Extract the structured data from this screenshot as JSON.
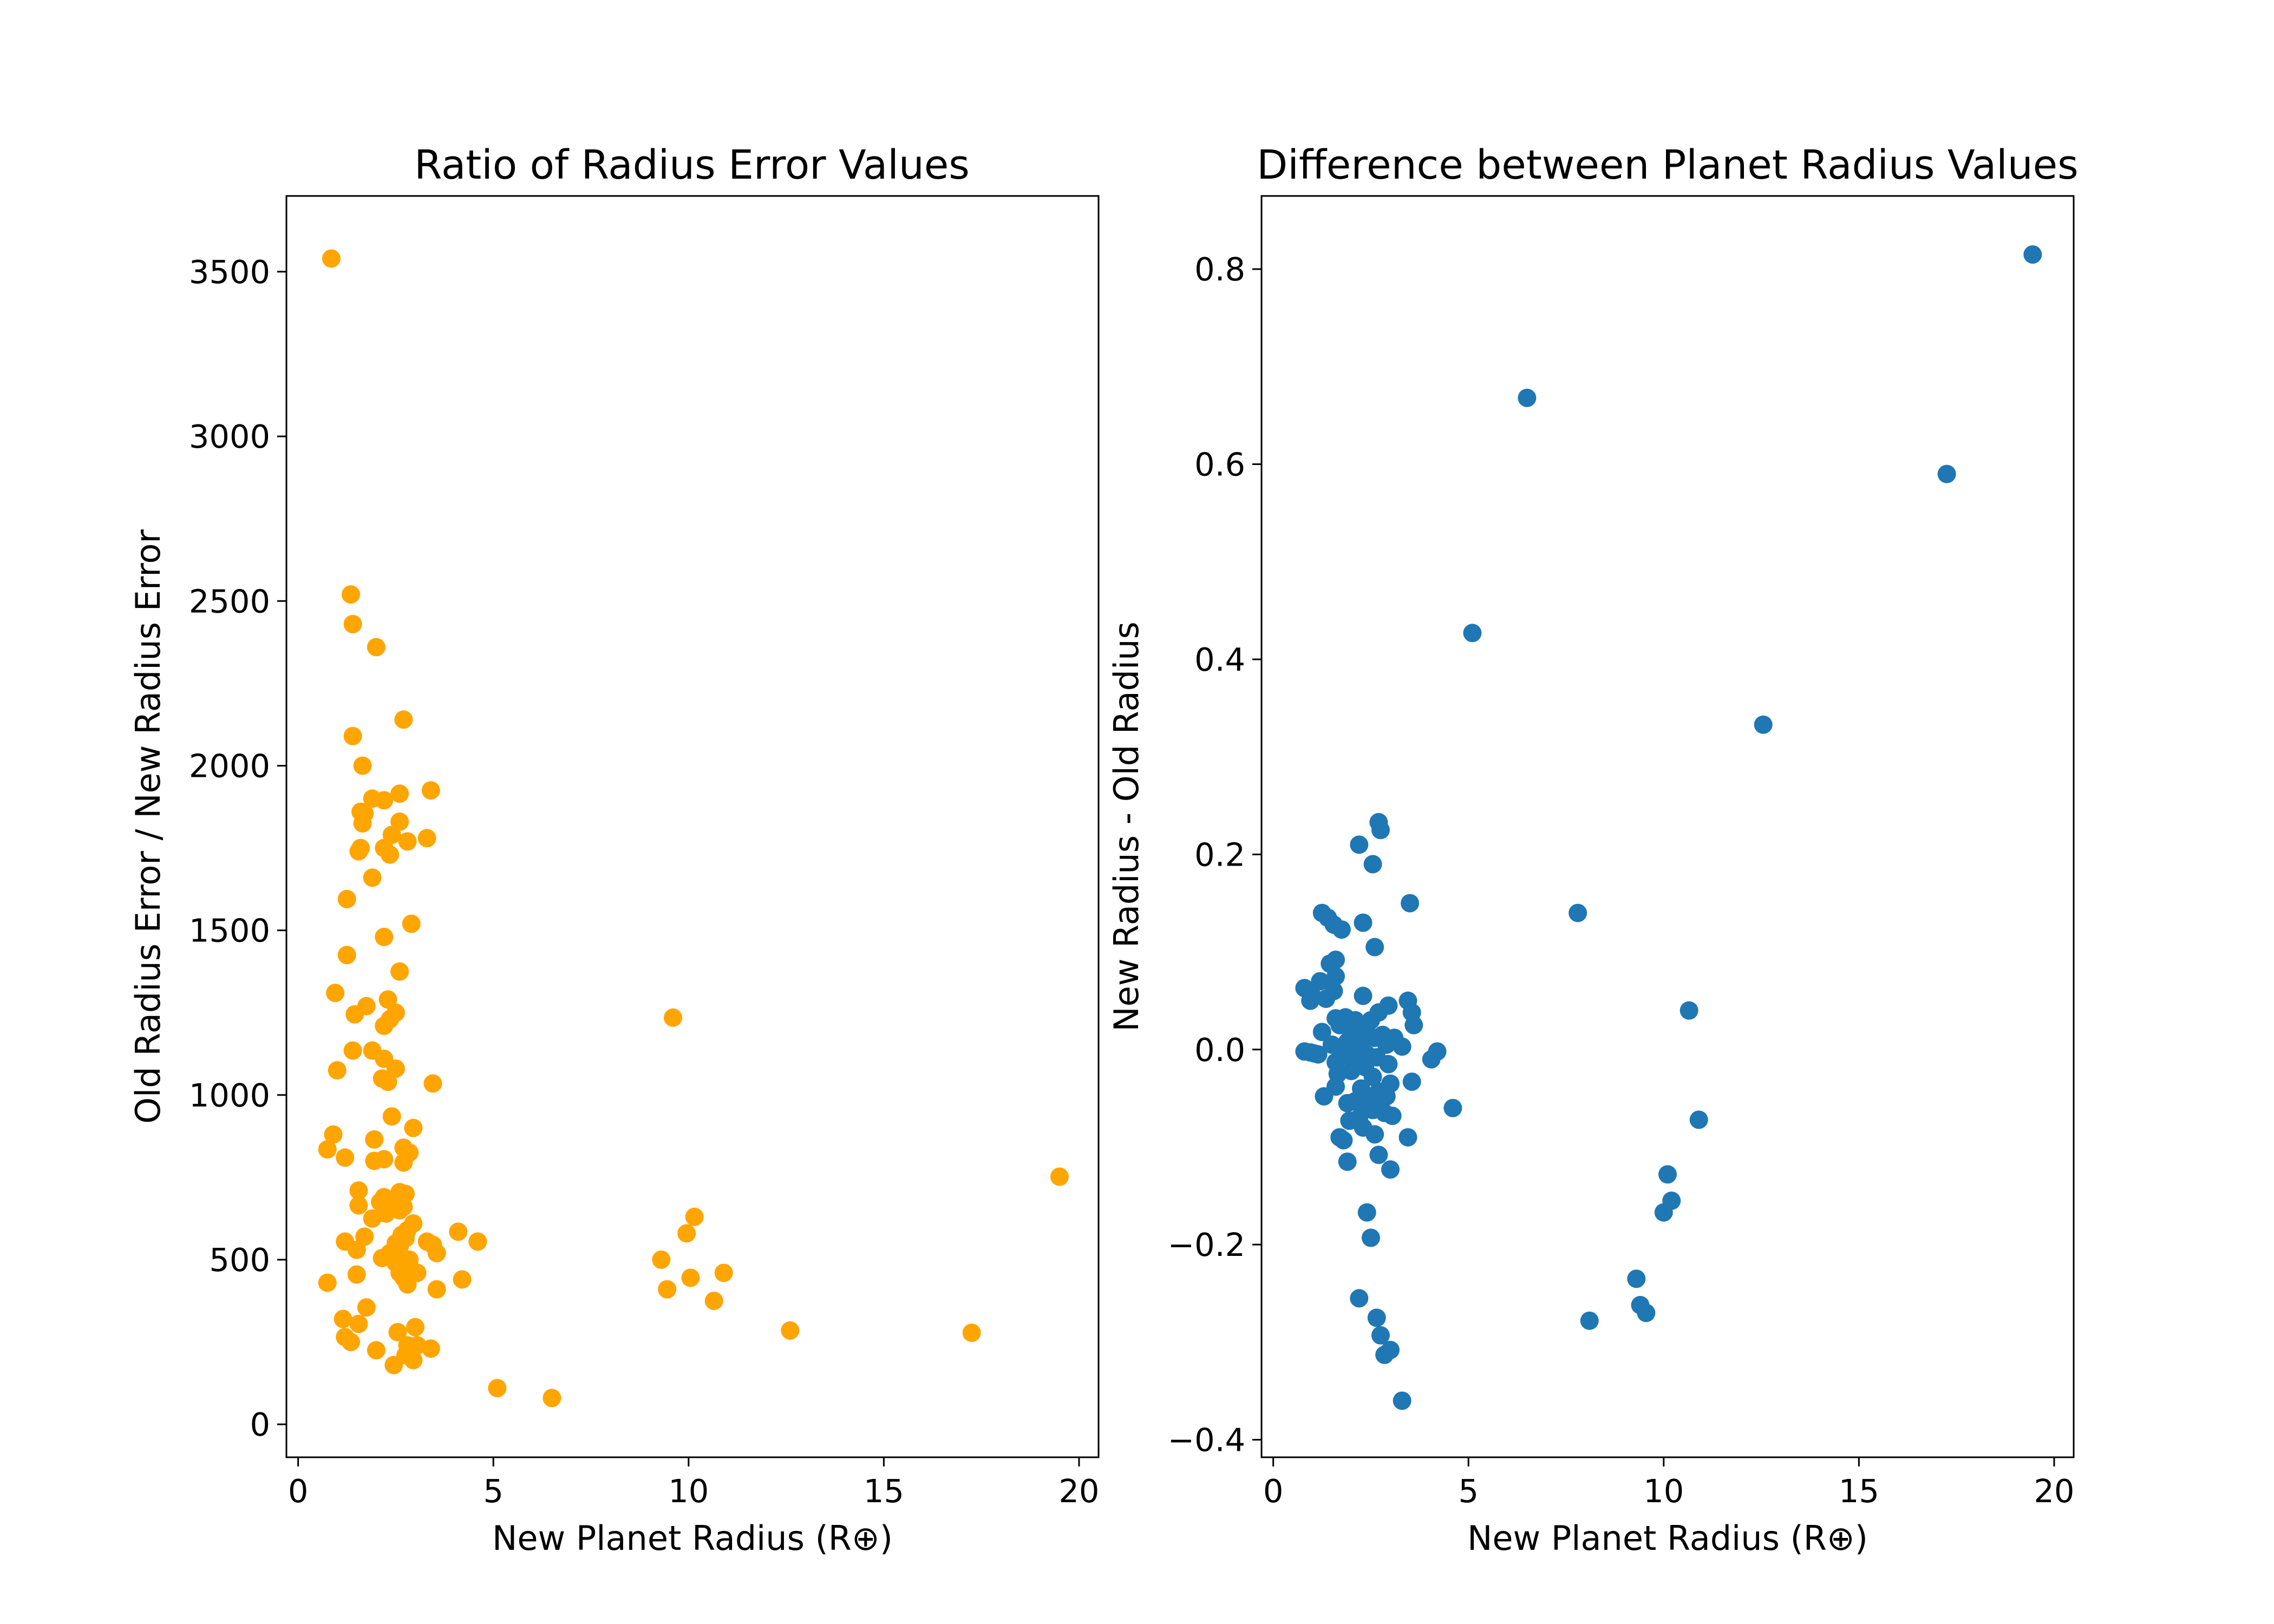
{
  "chart_data": [
    {
      "type": "scatter",
      "title": "Ratio of Radius Error Values",
      "xlabel": "New Planet Radius (R⊕)",
      "ylabel": "Old Radius Error / New Radius Error",
      "xlim": [
        -0.3,
        20.5
      ],
      "ylim": [
        -100,
        3730
      ],
      "xticks": [
        0,
        5,
        10,
        15,
        20
      ],
      "yticks": [
        0,
        500,
        1000,
        1500,
        2000,
        2500,
        3000,
        3500
      ],
      "grid": false,
      "color": "#ffa500",
      "series": [
        {
          "points": [
            [
              0.85,
              3540
            ],
            [
              1.35,
              2520
            ],
            [
              1.4,
              2430
            ],
            [
              2.0,
              2360
            ],
            [
              1.4,
              2090
            ],
            [
              2.7,
              2140
            ],
            [
              1.65,
              2000
            ],
            [
              3.4,
              1925
            ],
            [
              2.6,
              1915
            ],
            [
              2.2,
              1895
            ],
            [
              1.9,
              1900
            ],
            [
              1.6,
              1860
            ],
            [
              1.7,
              1855
            ],
            [
              2.6,
              1830
            ],
            [
              1.65,
              1825
            ],
            [
              2.4,
              1790
            ],
            [
              3.3,
              1780
            ],
            [
              2.8,
              1770
            ],
            [
              2.2,
              1750
            ],
            [
              1.55,
              1740
            ],
            [
              2.35,
              1730
            ],
            [
              1.6,
              1750
            ],
            [
              1.9,
              1660
            ],
            [
              1.25,
              1595
            ],
            [
              2.9,
              1520
            ],
            [
              2.2,
              1480
            ],
            [
              1.25,
              1425
            ],
            [
              2.6,
              1375
            ],
            [
              0.95,
              1310
            ],
            [
              2.3,
              1290
            ],
            [
              1.75,
              1270
            ],
            [
              2.5,
              1250
            ],
            [
              1.45,
              1245
            ],
            [
              2.35,
              1230
            ],
            [
              2.2,
              1210
            ],
            [
              1.4,
              1135
            ],
            [
              1.9,
              1135
            ],
            [
              2.2,
              1110
            ],
            [
              2.5,
              1080
            ],
            [
              1.0,
              1075
            ],
            [
              2.15,
              1050
            ],
            [
              2.3,
              1040
            ],
            [
              3.45,
              1035
            ],
            [
              2.4,
              935
            ],
            [
              2.95,
              900
            ],
            [
              0.9,
              880
            ],
            [
              1.95,
              865
            ],
            [
              2.7,
              840
            ],
            [
              0.75,
              835
            ],
            [
              2.85,
              825
            ],
            [
              1.2,
              810
            ],
            [
              2.2,
              805
            ],
            [
              1.95,
              800
            ],
            [
              2.7,
              795
            ],
            [
              1.55,
              710
            ],
            [
              2.6,
              705
            ],
            [
              2.75,
              700
            ],
            [
              2.2,
              690
            ],
            [
              2.1,
              675
            ],
            [
              2.4,
              675
            ],
            [
              1.55,
              665
            ],
            [
              2.7,
              660
            ],
            [
              2.6,
              650
            ],
            [
              2.25,
              640
            ],
            [
              1.9,
              625
            ],
            [
              2.95,
              610
            ],
            [
              2.8,
              590
            ],
            [
              4.1,
              585
            ],
            [
              2.65,
              575
            ],
            [
              1.7,
              570
            ],
            [
              2.75,
              565
            ],
            [
              3.3,
              555
            ],
            [
              1.2,
              555
            ],
            [
              2.5,
              550
            ],
            [
              3.45,
              545
            ],
            [
              2.6,
              540
            ],
            [
              4.6,
              555
            ],
            [
              1.5,
              530
            ],
            [
              3.55,
              520
            ],
            [
              2.35,
              520
            ],
            [
              2.15,
              505
            ],
            [
              2.85,
              500
            ],
            [
              2.5,
              490
            ],
            [
              2.75,
              485
            ],
            [
              2.9,
              470
            ],
            [
              2.6,
              460
            ],
            [
              3.05,
              460
            ],
            [
              1.5,
              455
            ],
            [
              2.7,
              445
            ],
            [
              4.2,
              440
            ],
            [
              0.75,
              430
            ],
            [
              2.8,
              425
            ],
            [
              3.55,
              410
            ],
            [
              1.75,
              355
            ],
            [
              1.15,
              320
            ],
            [
              1.55,
              305
            ],
            [
              3.0,
              295
            ],
            [
              2.55,
              280
            ],
            [
              1.2,
              265
            ],
            [
              1.35,
              250
            ],
            [
              2.8,
              240
            ],
            [
              3.05,
              240
            ],
            [
              2.0,
              225
            ],
            [
              3.4,
              230
            ],
            [
              2.75,
              210
            ],
            [
              2.95,
              195
            ],
            [
              2.45,
              180
            ],
            [
              9.6,
              1235
            ],
            [
              10.15,
              630
            ],
            [
              9.95,
              580
            ],
            [
              9.3,
              500
            ],
            [
              10.9,
              460
            ],
            [
              10.05,
              445
            ],
            [
              9.45,
              410
            ],
            [
              10.65,
              375
            ],
            [
              12.6,
              285
            ],
            [
              17.25,
              278
            ],
            [
              19.5,
              752
            ],
            [
              5.1,
              110
            ],
            [
              6.5,
              80
            ]
          ]
        }
      ]
    },
    {
      "type": "scatter",
      "title": "Difference between Planet Radius Values",
      "xlabel": "New Planet Radius (R⊕)",
      "ylabel": "New Radius - Old Radius",
      "xlim": [
        -0.3,
        20.5
      ],
      "ylim": [
        -0.418,
        0.875
      ],
      "xticks": [
        0,
        5,
        10,
        15,
        20
      ],
      "yticks": [
        -0.4,
        -0.2,
        0.0,
        0.2,
        0.4,
        0.6,
        0.8
      ],
      "ytick_labels": [
        "−0.4",
        "−0.2",
        "0.0",
        "0.2",
        "0.4",
        "0.6",
        "0.8"
      ],
      "grid": false,
      "color": "#1f77b4",
      "series": [
        {
          "points": [
            [
              19.45,
              0.815
            ],
            [
              6.5,
              0.668
            ],
            [
              17.25,
              0.59
            ],
            [
              5.1,
              0.427
            ],
            [
              12.55,
              0.333
            ],
            [
              7.8,
              0.14
            ],
            [
              10.65,
              0.04
            ],
            [
              4.6,
              -0.06
            ],
            [
              10.9,
              -0.072
            ],
            [
              10.1,
              -0.128
            ],
            [
              10.2,
              -0.155
            ],
            [
              10.0,
              -0.167
            ],
            [
              9.3,
              -0.235
            ],
            [
              9.4,
              -0.262
            ],
            [
              9.55,
              -0.27
            ],
            [
              8.1,
              -0.278
            ],
            [
              2.7,
              0.233
            ],
            [
              2.75,
              0.225
            ],
            [
              2.2,
              0.21
            ],
            [
              2.55,
              0.19
            ],
            [
              3.5,
              0.15
            ],
            [
              1.25,
              0.14
            ],
            [
              1.4,
              0.135
            ],
            [
              1.55,
              0.128
            ],
            [
              2.3,
              0.13
            ],
            [
              1.75,
              0.123
            ],
            [
              2.6,
              0.105
            ],
            [
              1.6,
              0.092
            ],
            [
              1.45,
              0.088
            ],
            [
              1.6,
              0.075
            ],
            [
              1.2,
              0.07
            ],
            [
              0.8,
              0.063
            ],
            [
              1.55,
              0.06
            ],
            [
              1.0,
              0.055
            ],
            [
              1.35,
              0.052
            ],
            [
              0.95,
              0.05
            ],
            [
              2.3,
              0.055
            ],
            [
              3.45,
              0.05
            ],
            [
              2.95,
              0.045
            ],
            [
              3.55,
              0.038
            ],
            [
              2.7,
              0.038
            ],
            [
              1.6,
              0.032
            ],
            [
              1.85,
              0.033
            ],
            [
              2.1,
              0.03
            ],
            [
              2.5,
              0.03
            ],
            [
              1.7,
              0.025
            ],
            [
              3.6,
              0.025
            ],
            [
              2.35,
              0.02
            ],
            [
              2.0,
              0.018
            ],
            [
              1.25,
              0.018
            ],
            [
              2.8,
              0.015
            ],
            [
              2.6,
              0.012
            ],
            [
              3.1,
              0.012
            ],
            [
              1.9,
              0.008
            ],
            [
              2.25,
              0.008
            ],
            [
              2.9,
              0.005
            ],
            [
              3.3,
              0.003
            ],
            [
              1.5,
              0.005
            ],
            [
              0.8,
              -0.002
            ],
            [
              0.95,
              -0.003
            ],
            [
              1.05,
              -0.004
            ],
            [
              1.15,
              -0.005
            ],
            [
              4.2,
              -0.002
            ],
            [
              2.05,
              -0.003
            ],
            [
              2.4,
              -0.005
            ],
            [
              1.8,
              -0.006
            ],
            [
              2.65,
              -0.008
            ],
            [
              4.05,
              -0.01
            ],
            [
              2.15,
              -0.012
            ],
            [
              1.6,
              -0.013
            ],
            [
              2.95,
              -0.015
            ],
            [
              2.35,
              -0.018
            ],
            [
              2.0,
              -0.022
            ],
            [
              1.65,
              -0.025
            ],
            [
              2.55,
              -0.028
            ],
            [
              3.55,
              -0.033
            ],
            [
              3.0,
              -0.035
            ],
            [
              1.6,
              -0.038
            ],
            [
              2.25,
              -0.04
            ],
            [
              2.7,
              -0.043
            ],
            [
              1.3,
              -0.048
            ],
            [
              2.9,
              -0.048
            ],
            [
              2.45,
              -0.05
            ],
            [
              2.1,
              -0.053
            ],
            [
              1.9,
              -0.055
            ],
            [
              2.7,
              -0.057
            ],
            [
              2.35,
              -0.06
            ],
            [
              2.55,
              -0.062
            ],
            [
              2.85,
              -0.065
            ],
            [
              3.05,
              -0.068
            ],
            [
              2.2,
              -0.07
            ],
            [
              1.95,
              -0.073
            ],
            [
              2.3,
              -0.08
            ],
            [
              2.6,
              -0.087
            ],
            [
              1.7,
              -0.09
            ],
            [
              3.45,
              -0.09
            ],
            [
              1.8,
              -0.093
            ],
            [
              2.7,
              -0.108
            ],
            [
              1.9,
              -0.115
            ],
            [
              3.0,
              -0.123
            ],
            [
              2.4,
              -0.167
            ],
            [
              2.5,
              -0.193
            ],
            [
              2.2,
              -0.255
            ],
            [
              2.65,
              -0.275
            ],
            [
              2.75,
              -0.293
            ],
            [
              3.0,
              -0.308
            ],
            [
              2.85,
              -0.313
            ],
            [
              3.3,
              -0.36
            ]
          ]
        }
      ]
    }
  ]
}
